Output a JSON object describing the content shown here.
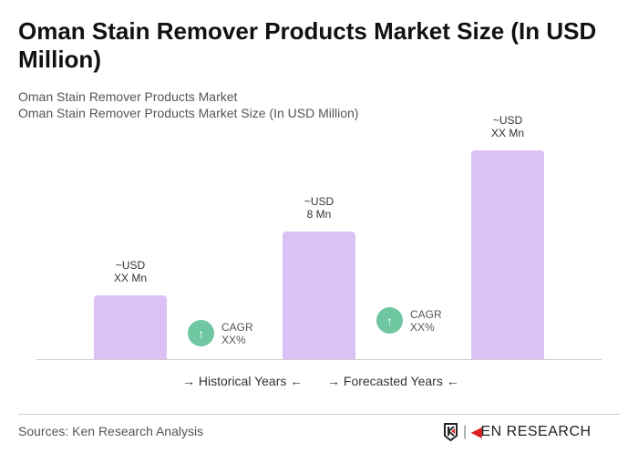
{
  "title": "Oman Stain Remover Products Market Size (In USD Million)",
  "subtitle1": "Oman Stain Remover Products Market",
  "subtitle2": "Oman Stain Remover Products Market Size (In USD Million)",
  "chart_data": {
    "type": "bar",
    "categories": [
      "",
      "",
      ""
    ],
    "values": [
      4,
      8,
      13.1
    ],
    "data_labels": [
      [
        "~USD",
        "XX Mn"
      ],
      [
        "~USD",
        "8 Mn"
      ],
      [
        "~USD",
        "XX Mn"
      ]
    ],
    "bar_color": "#dcc1f7",
    "cagr": [
      {
        "label": "CAGR",
        "value": "XX%"
      },
      {
        "label": "CAGR",
        "value": "XX%"
      }
    ],
    "cagr_color": "#6fc7a2",
    "legend": [
      "Historical Years",
      "Forecasted Years"
    ],
    "legend_placement": "bottom"
  },
  "sources": "Sources: Ken Research Analysis",
  "logo_text": "KEN RESEARCH"
}
